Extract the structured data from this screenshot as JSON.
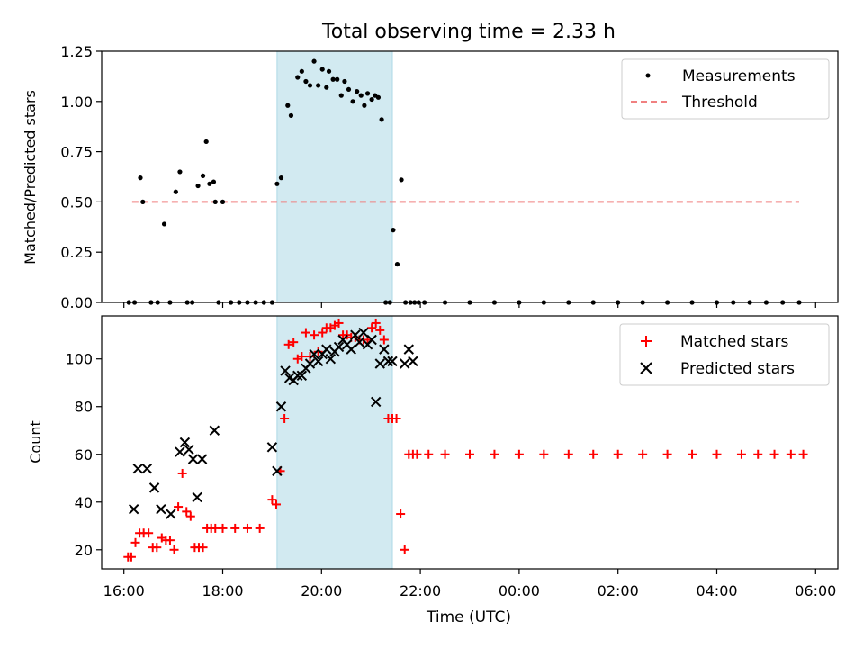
{
  "title": "Total observing time = 2.33 h",
  "xlabel": "Time (UTC)",
  "x_ticks": [
    "16:00",
    "18:00",
    "20:00",
    "22:00",
    "00:00",
    "02:00",
    "04:00",
    "06:00"
  ],
  "colors": {
    "shade": "#add8e6",
    "measure": "#000000",
    "threshold": "#f08080",
    "matched": "#ff0000",
    "predicted": "#000000"
  },
  "chart_data": [
    {
      "type": "scatter",
      "ylabel": "Matched/Predicted stars",
      "ylim": [
        0,
        1.25
      ],
      "y_ticks": [
        "0.00",
        "0.25",
        "0.50",
        "0.75",
        "1.00",
        "1.25"
      ],
      "xlim_hours": [
        15.55,
        30.45
      ],
      "shaded_interval": [
        "19:06",
        "21:26"
      ],
      "legend": {
        "placement": "upper right",
        "entries": [
          "Measurements",
          "Threshold"
        ]
      },
      "threshold": {
        "name": "Threshold",
        "value": 0.5,
        "x_range": [
          "16:10",
          "29:40"
        ]
      },
      "series": [
        {
          "name": "Measurements",
          "marker": "dot",
          "x": [
            "16:06",
            "16:13",
            "16:20",
            "16:23",
            "16:33",
            "16:41",
            "16:49",
            "16:56",
            "17:03",
            "17:08",
            "17:17",
            "17:23",
            "17:30",
            "17:36",
            "17:40",
            "17:44",
            "17:49",
            "17:51",
            "17:55",
            "18:00",
            "18:10",
            "18:20",
            "18:30",
            "18:40",
            "18:50",
            "19:00",
            "19:06",
            "19:11",
            "19:19",
            "19:23",
            "19:31",
            "19:36",
            "19:41",
            "19:46",
            "19:51",
            "19:56",
            "20:01",
            "20:06",
            "20:09",
            "20:14",
            "20:19",
            "20:24",
            "20:28",
            "20:33",
            "20:38",
            "20:43",
            "20:48",
            "20:52",
            "20:56",
            "21:01",
            "21:05",
            "21:09",
            "21:13",
            "21:18",
            "21:23",
            "21:27",
            "21:32",
            "21:37",
            "21:42",
            "21:48",
            "21:53",
            "21:58",
            "22:05",
            "22:30",
            "23:00",
            "23:30",
            "24:00",
            "24:30",
            "25:00",
            "25:30",
            "26:00",
            "26:30",
            "27:00",
            "27:30",
            "28:00",
            "28:20",
            "28:40",
            "29:00",
            "29:20",
            "29:40"
          ],
          "y": [
            0,
            0,
            0.62,
            0.5,
            0,
            0,
            0.39,
            0,
            0.55,
            0.65,
            0,
            0,
            0.58,
            0.63,
            0.8,
            0.59,
            0.6,
            0.5,
            0,
            0.5,
            0,
            0,
            0,
            0,
            0,
            0,
            0.59,
            0.62,
            0.98,
            0.93,
            1.12,
            1.15,
            1.1,
            1.08,
            1.2,
            1.08,
            1.16,
            1.07,
            1.15,
            1.11,
            1.11,
            1.03,
            1.1,
            1.06,
            1.0,
            1.05,
            1.03,
            0.98,
            1.04,
            1.01,
            1.03,
            1.02,
            0.91,
            0,
            0,
            0.36,
            0.19,
            0.61,
            0,
            0,
            0,
            0,
            0,
            0,
            0,
            0,
            0,
            0,
            0,
            0,
            0,
            0,
            0,
            0,
            0,
            0,
            0,
            0,
            0,
            0
          ]
        }
      ]
    },
    {
      "type": "scatter",
      "ylabel": "Count",
      "ylim": [
        12,
        118
      ],
      "y_ticks": [
        "20",
        "40",
        "60",
        "80",
        "100"
      ],
      "xlim_hours": [
        15.55,
        30.45
      ],
      "shaded_interval": [
        "19:06",
        "21:26"
      ],
      "legend": {
        "placement": "upper right",
        "entries": [
          "Matched stars",
          "Predicted stars"
        ]
      },
      "series": [
        {
          "name": "Matched stars",
          "marker": "plus",
          "x": [
            "16:05",
            "16:09",
            "16:14",
            "16:19",
            "16:24",
            "16:30",
            "16:35",
            "16:40",
            "16:46",
            "16:51",
            "16:56",
            "17:01",
            "17:06",
            "17:11",
            "17:16",
            "17:21",
            "17:26",
            "17:31",
            "17:36",
            "17:41",
            "17:46",
            "17:51",
            "18:00",
            "18:15",
            "18:30",
            "18:45",
            "19:00",
            "19:05",
            "19:10",
            "19:15",
            "19:20",
            "19:26",
            "19:31",
            "19:36",
            "19:41",
            "19:46",
            "19:51",
            "19:56",
            "20:01",
            "20:06",
            "20:11",
            "20:16",
            "20:21",
            "20:26",
            "20:31",
            "20:36",
            "20:41",
            "20:46",
            "20:51",
            "20:56",
            "21:01",
            "21:06",
            "21:11",
            "21:16",
            "21:21",
            "21:26",
            "21:31",
            "21:36",
            "21:41",
            "21:46",
            "21:51",
            "21:56",
            "22:10",
            "22:30",
            "23:00",
            "23:30",
            "24:00",
            "24:30",
            "25:00",
            "25:30",
            "26:00",
            "26:30",
            "27:00",
            "27:30",
            "28:00",
            "28:30",
            "28:50",
            "29:10",
            "29:30",
            "29:45"
          ],
          "y": [
            17,
            17,
            23,
            27,
            27,
            27,
            21,
            21,
            25,
            24,
            24,
            20,
            38,
            52,
            36,
            34,
            21,
            21,
            21,
            29,
            29,
            29,
            29,
            29,
            29,
            29,
            41,
            39,
            53,
            75,
            106,
            107,
            100,
            101,
            111,
            101,
            110,
            103,
            111,
            113,
            113,
            114,
            115,
            110,
            110,
            109,
            109,
            108,
            108,
            108,
            113,
            115,
            112,
            108,
            75,
            75,
            75,
            35,
            20,
            60,
            60,
            60,
            60,
            60,
            60,
            60,
            60,
            60,
            60,
            60,
            60,
            60,
            60,
            60,
            60,
            60,
            60,
            60,
            60,
            60
          ]
        },
        {
          "name": "Predicted stars",
          "marker": "x",
          "x": [
            "16:12",
            "16:17",
            "16:28",
            "16:37",
            "16:45",
            "16:57",
            "17:08",
            "17:14",
            "17:19",
            "17:24",
            "17:29",
            "17:35",
            "17:50",
            "19:00",
            "19:06",
            "19:11",
            "19:16",
            "19:21",
            "19:26",
            "19:31",
            "19:36",
            "19:41",
            "19:46",
            "19:51",
            "19:56",
            "20:01",
            "20:06",
            "20:11",
            "20:16",
            "20:21",
            "20:26",
            "20:31",
            "20:36",
            "20:41",
            "20:46",
            "20:51",
            "20:56",
            "21:01",
            "21:06",
            "21:11",
            "21:16",
            "21:21",
            "21:26",
            "21:41",
            "21:46",
            "21:51"
          ],
          "y": [
            37,
            54,
            54,
            46,
            37,
            35,
            61,
            65,
            62,
            58,
            42,
            58,
            70,
            63,
            53,
            80,
            95,
            92,
            91,
            93,
            93,
            96,
            98,
            102,
            99,
            102,
            104,
            100,
            103,
            105,
            108,
            106,
            104,
            110,
            107,
            111,
            106,
            108,
            82,
            98,
            104,
            99,
            99,
            98,
            104,
            99
          ]
        }
      ]
    }
  ]
}
